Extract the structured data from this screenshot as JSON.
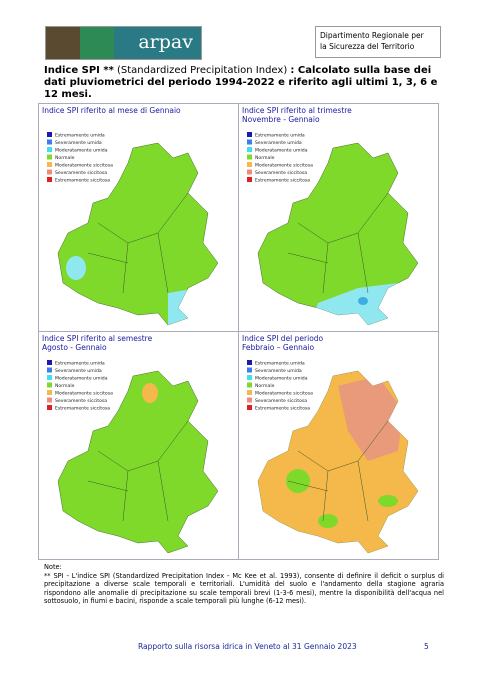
{
  "header": {
    "logo_text": "arpav",
    "org_lines": [
      "Dipartimento Regionale per",
      "la Sicurezza del Territorio"
    ]
  },
  "heading": {
    "bold_start": "Indice SPI **",
    "normal": "(Standardized Precipitation Index)",
    "bold_end": ": Calcolato sulla base dei dati pluviometrici del periodo 1994-2022 e riferito agli ultimi 1, 3, 6 e 12 mesi."
  },
  "panels": [
    {
      "title_lines": [
        "Indice SPI riferito al mese di Gennaio"
      ],
      "legend": [
        "Estremamente umida",
        "Severamente umida",
        "Moderatamente umida",
        "Normale",
        "Moderatamente siccitosa",
        "Severamente siccitosa",
        "Estremamente siccitosa"
      ]
    },
    {
      "title_lines": [
        "Indice SPI riferito al trimestre",
        "Novembre - Gennaio"
      ],
      "legend": [
        "Estremamente umida",
        "Severamente umida",
        "Moderatamente umida",
        "Normale",
        "Moderatamente siccitosa",
        "Severamente siccitosa",
        "Estremamente siccitosa"
      ]
    },
    {
      "title_lines": [
        "Indice SPI riferito al semestre",
        "Agosto - Gennaio"
      ],
      "legend": [
        "Estremamente umida",
        "Severamente umida",
        "Moderatamente umida",
        "Normale",
        "Moderatamente siccitosa",
        "Severamente siccitosa",
        "Estremamente siccitosa"
      ]
    },
    {
      "title_lines": [
        "Indice SPI del periodo",
        "Febbraio – Gennaio"
      ],
      "legend": [
        "Estremamente umida",
        "Severamente umida",
        "Moderatamente umida",
        "Normale",
        "Moderatamente siccitosa",
        "Severamente siccitosa",
        "Estremamente siccitosa"
      ]
    }
  ],
  "note": {
    "label": "Note:",
    "text": "** SPI - L'indice SPI (Standardized Precipitation Index - Mc Kee et al. 1993), consente di definire il deficit o surplus di precipitazione a diverse scale temporali e territoriali. L'umidità del suolo e l'andamento della stagione agraria rispondono alle anomalie di precipitazione su scale temporali brevi (1-3-6 mesi), mentre la disponibilità dell'acqua nel sottosuolo, in fiumi e bacini, risponde a scale temporali più lunghe (6-12 mesi)."
  },
  "footer": {
    "text": "Rapporto sulla risorsa idrica in Veneto al 31 Gennaio 2023",
    "page": "5"
  }
}
